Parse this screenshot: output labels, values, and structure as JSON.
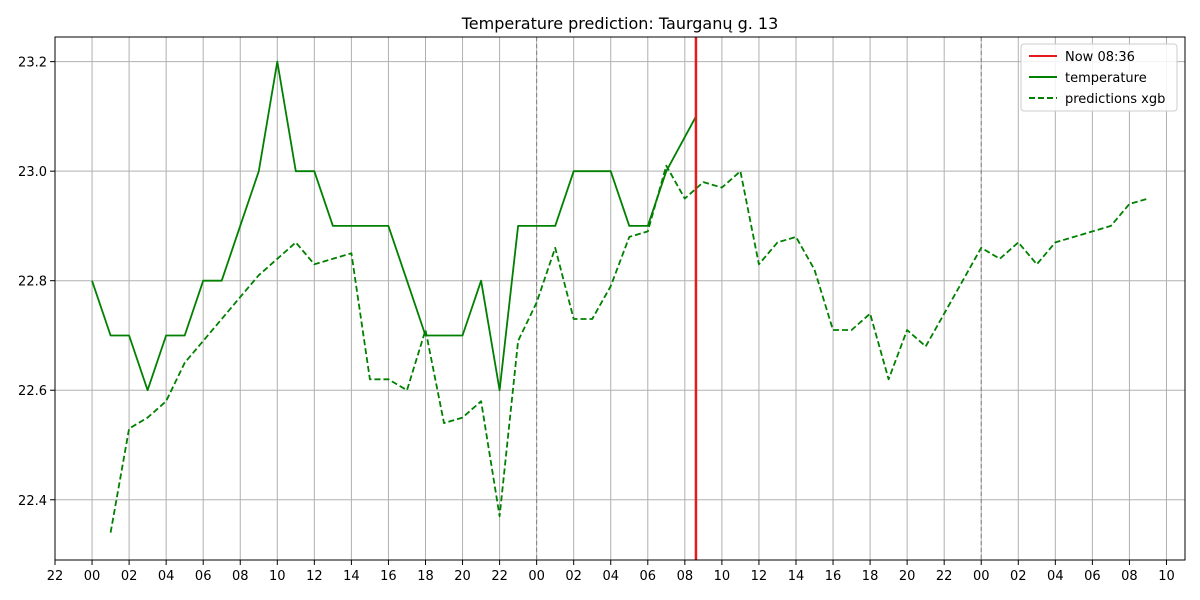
{
  "chart_data": {
    "type": "line",
    "title": "Temperature prediction: Taurganų g. 13",
    "xlabel": "",
    "ylabel": "",
    "x_unit": "hours",
    "x_range": [
      -2,
      59
    ],
    "ylim": [
      22.29,
      23.245
    ],
    "y_ticks": [
      22.4,
      22.6,
      22.8,
      23.0,
      23.2
    ],
    "y_tick_labels": [
      "22.4",
      "22.6",
      "22.8",
      "23.0",
      "23.2"
    ],
    "x_ticks": [
      -2,
      0,
      2,
      4,
      6,
      8,
      10,
      12,
      14,
      16,
      18,
      20,
      22,
      24,
      26,
      28,
      30,
      32,
      34,
      36,
      38,
      40,
      42,
      44,
      46,
      48,
      50,
      52,
      54,
      56,
      58
    ],
    "x_tick_labels": [
      "22",
      "00",
      "02",
      "04",
      "06",
      "08",
      "10",
      "12",
      "14",
      "16",
      "18",
      "20",
      "22",
      "00",
      "02",
      "04",
      "06",
      "08",
      "10",
      "12",
      "14",
      "16",
      "18",
      "20",
      "22",
      "00",
      "02",
      "04",
      "06",
      "08",
      "10"
    ],
    "grid": true,
    "legend_position": "top-right",
    "day_boundaries": [
      24,
      48
    ],
    "now": {
      "x": 32.6,
      "label": "Now 08:36",
      "color": "#e41a1c"
    },
    "series": [
      {
        "name": "temperature",
        "color": "#008000",
        "dash": "solid",
        "x": [
          0,
          1,
          2,
          3,
          4,
          5,
          6,
          7,
          8,
          9,
          10,
          11,
          12,
          13,
          14,
          15,
          16,
          17,
          18,
          19,
          20,
          21,
          22,
          23,
          24,
          25,
          26,
          27,
          28,
          29,
          30,
          31,
          32.6
        ],
        "values": [
          22.8,
          22.7,
          22.7,
          22.6,
          22.7,
          22.7,
          22.8,
          22.8,
          22.9,
          23.0,
          23.2,
          23.0,
          23.0,
          22.9,
          22.9,
          22.9,
          22.9,
          22.8,
          22.7,
          22.7,
          22.7,
          22.8,
          22.6,
          22.9,
          22.9,
          22.9,
          23.0,
          23.0,
          23.0,
          22.9,
          22.9,
          23.0,
          23.1
        ]
      },
      {
        "name": "predictions xgb",
        "color": "#008000",
        "dash": "dashed",
        "x": [
          1,
          2,
          3,
          4,
          5,
          6,
          7,
          8,
          9,
          10,
          11,
          12,
          13,
          14,
          15,
          16,
          17,
          18,
          19,
          20,
          21,
          22,
          23,
          24,
          25,
          26,
          27,
          28,
          29,
          30,
          31,
          32,
          33,
          34,
          35,
          36,
          37,
          38,
          39,
          40,
          41,
          42,
          43,
          44,
          45,
          46,
          47,
          48,
          49,
          50,
          51,
          52,
          53,
          54,
          55,
          56,
          57
        ],
        "values": [
          22.34,
          22.53,
          22.55,
          22.58,
          22.65,
          22.69,
          22.73,
          22.77,
          22.81,
          22.84,
          22.87,
          22.83,
          22.84,
          22.85,
          22.62,
          22.62,
          22.6,
          22.71,
          22.54,
          22.55,
          22.58,
          22.37,
          22.69,
          22.76,
          22.86,
          22.73,
          22.73,
          22.79,
          22.88,
          22.89,
          23.01,
          22.95,
          22.98,
          22.97,
          23.0,
          22.83,
          22.87,
          22.88,
          22.82,
          22.71,
          22.71,
          22.74,
          22.62,
          22.71,
          22.68,
          22.74,
          22.8,
          22.86,
          22.84,
          22.87,
          22.83,
          22.87,
          22.88,
          22.89,
          22.9,
          22.94,
          22.95
        ]
      }
    ]
  }
}
